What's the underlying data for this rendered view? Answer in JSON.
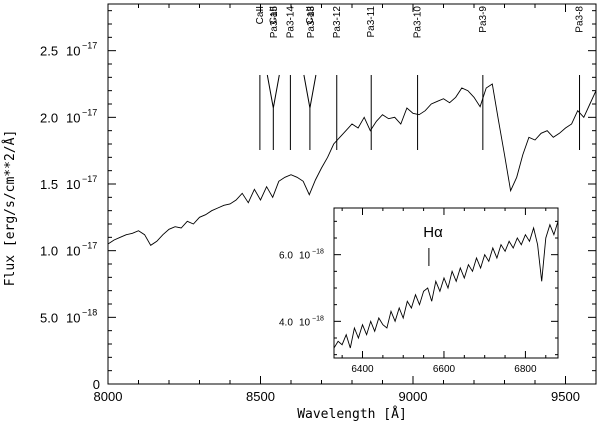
{
  "chart_data": [
    {
      "type": "line",
      "xlabel": "Wavelength [Å]",
      "ylabel": "Flux [erg/s/cm**2/Å]",
      "xlim": [
        8000,
        9600
      ],
      "ylim": [
        0,
        2.85e-17
      ],
      "xticks": [
        8000,
        8500,
        9000,
        9500
      ],
      "yticks": [
        {
          "value": 0,
          "label_a": "0",
          "label_b": ""
        },
        {
          "value": 5e-18,
          "label_a": "5.0",
          "label_b": "10"
        },
        {
          "value": 1e-17,
          "label_a": "1.0",
          "label_b": "10"
        },
        {
          "value": 1.5e-17,
          "label_a": "1.5",
          "label_b": "10"
        },
        {
          "value": 2e-17,
          "label_a": "2.0",
          "label_b": "10"
        },
        {
          "value": 2.5e-17,
          "label_a": "2.5",
          "label_b": "10"
        }
      ],
      "ytick_exponents": {
        "5.0e-18": "−18",
        "default": "−17"
      },
      "line_marks": [
        {
          "label": "CaII",
          "x": 8498,
          "style": "straight"
        },
        {
          "label": "CaII",
          "x": 8542,
          "style": "fork"
        },
        {
          "label": "Pa3-15",
          "x": 8545,
          "style": "none"
        },
        {
          "label": "Pa3-14",
          "x": 8598,
          "style": "straight"
        },
        {
          "label": "CaII",
          "x": 8662,
          "style": "fork"
        },
        {
          "label": "Pa3-13",
          "x": 8665,
          "style": "none"
        },
        {
          "label": "Pa3-12",
          "x": 8750,
          "style": "straight"
        },
        {
          "label": "Pa3-11",
          "x": 8863,
          "style": "straight"
        },
        {
          "label": "Pa3-10",
          "x": 9015,
          "style": "straight"
        },
        {
          "label": "Pa3-9",
          "x": 9229,
          "style": "straight"
        },
        {
          "label": "Pa3-8",
          "x": 9546,
          "style": "straight"
        }
      ],
      "series": [
        {
          "x": [
            8000,
            8020,
            8040,
            8060,
            8080,
            8100,
            8120,
            8140,
            8160,
            8180,
            8200,
            8220,
            8240,
            8260,
            8280,
            8300,
            8320,
            8340,
            8360,
            8380,
            8400,
            8420,
            8440,
            8460,
            8480,
            8500,
            8520,
            8540,
            8560,
            8580,
            8600,
            8620,
            8640,
            8660,
            8680,
            8700,
            8720,
            8740,
            8760,
            8780,
            8800,
            8820,
            8840,
            8860,
            8880,
            8900,
            8920,
            8940,
            8960,
            8980,
            9000,
            9020,
            9040,
            9060,
            9080,
            9100,
            9120,
            9140,
            9160,
            9180,
            9200,
            9220,
            9240,
            9260,
            9280,
            9300,
            9320,
            9340,
            9360,
            9380,
            9400,
            9420,
            9440,
            9460,
            9480,
            9500,
            9520,
            9540,
            9560,
            9580,
            9600
          ],
          "values": [
            1.05e-17,
            1.08e-17,
            1.1e-17,
            1.12e-17,
            1.13e-17,
            1.15e-17,
            1.12e-17,
            1.04e-17,
            1.07e-17,
            1.12e-17,
            1.16e-17,
            1.18e-17,
            1.17e-17,
            1.22e-17,
            1.2e-17,
            1.25e-17,
            1.27e-17,
            1.3e-17,
            1.32e-17,
            1.34e-17,
            1.35e-17,
            1.38e-17,
            1.43e-17,
            1.36e-17,
            1.46e-17,
            1.38e-17,
            1.48e-17,
            1.4e-17,
            1.52e-17,
            1.55e-17,
            1.57e-17,
            1.55e-17,
            1.52e-17,
            1.42e-17,
            1.53e-17,
            1.62e-17,
            1.7e-17,
            1.8e-17,
            1.85e-17,
            1.9e-17,
            1.95e-17,
            1.92e-17,
            2e-17,
            1.9e-17,
            1.97e-17,
            2.02e-17,
            1.99e-17,
            2e-17,
            1.95e-17,
            2.07e-17,
            2.03e-17,
            2.02e-17,
            2.05e-17,
            2.1e-17,
            2.12e-17,
            2.14e-17,
            2.11e-17,
            2.15e-17,
            2.22e-17,
            2.2e-17,
            2.15e-17,
            2.08e-17,
            2.22e-17,
            2.25e-17,
            1.98e-17,
            1.72e-17,
            1.45e-17,
            1.55e-17,
            1.72e-17,
            1.85e-17,
            1.83e-17,
            1.88e-17,
            1.9e-17,
            1.85e-17,
            1.88e-17,
            1.92e-17,
            1.95e-17,
            2.05e-17,
            2e-17,
            2.1e-17,
            2.2e-17
          ]
        }
      ]
    },
    {
      "type": "line",
      "title": "Hα",
      "xlim": [
        6330,
        6880
      ],
      "ylim": [
        2.9e-18,
        7.4e-18
      ],
      "xticks": [
        6400,
        6600,
        6800
      ],
      "yticks": [
        {
          "value": 4e-18,
          "label_a": "4.0",
          "label_b": "10",
          "exp": "−18"
        },
        {
          "value": 6e-18,
          "label_a": "6.0",
          "label_b": "10",
          "exp": "−18"
        }
      ],
      "mark_x": 6563,
      "series": [
        {
          "x": [
            6330,
            6340,
            6350,
            6360,
            6370,
            6380,
            6390,
            6400,
            6410,
            6420,
            6430,
            6440,
            6450,
            6460,
            6470,
            6480,
            6490,
            6500,
            6510,
            6520,
            6530,
            6540,
            6550,
            6560,
            6570,
            6580,
            6590,
            6600,
            6610,
            6620,
            6630,
            6640,
            6650,
            6660,
            6670,
            6680,
            6690,
            6700,
            6710,
            6720,
            6730,
            6740,
            6750,
            6760,
            6770,
            6780,
            6790,
            6800,
            6810,
            6820,
            6830,
            6840,
            6850,
            6860,
            6870,
            6880
          ],
          "values": [
            3.2e-18,
            3.4e-18,
            3.3e-18,
            3.6e-18,
            3.2e-18,
            3.8e-18,
            3.5e-18,
            3.9e-18,
            3.6e-18,
            4e-18,
            3.7e-18,
            4.1e-18,
            3.9e-18,
            3.8e-18,
            4.3e-18,
            4e-18,
            4.4e-18,
            4.1e-18,
            4.6e-18,
            4.4e-18,
            4.8e-18,
            4.5e-18,
            4.9e-18,
            5e-18,
            4.6e-18,
            5.2e-18,
            4.9e-18,
            5.3e-18,
            5e-18,
            5.5e-18,
            5.2e-18,
            5.6e-18,
            5.3e-18,
            5.7e-18,
            5.5e-18,
            5.9e-18,
            5.6e-18,
            6e-18,
            5.8e-18,
            6.2e-18,
            5.9e-18,
            6.3e-18,
            6.1e-18,
            6.4e-18,
            6.2e-18,
            6.5e-18,
            6.3e-18,
            6.6e-18,
            6.4e-18,
            6.8e-18,
            6.3e-18,
            5.2e-18,
            6.5e-18,
            6.9e-18,
            6.6e-18,
            7e-18
          ]
        }
      ]
    }
  ]
}
